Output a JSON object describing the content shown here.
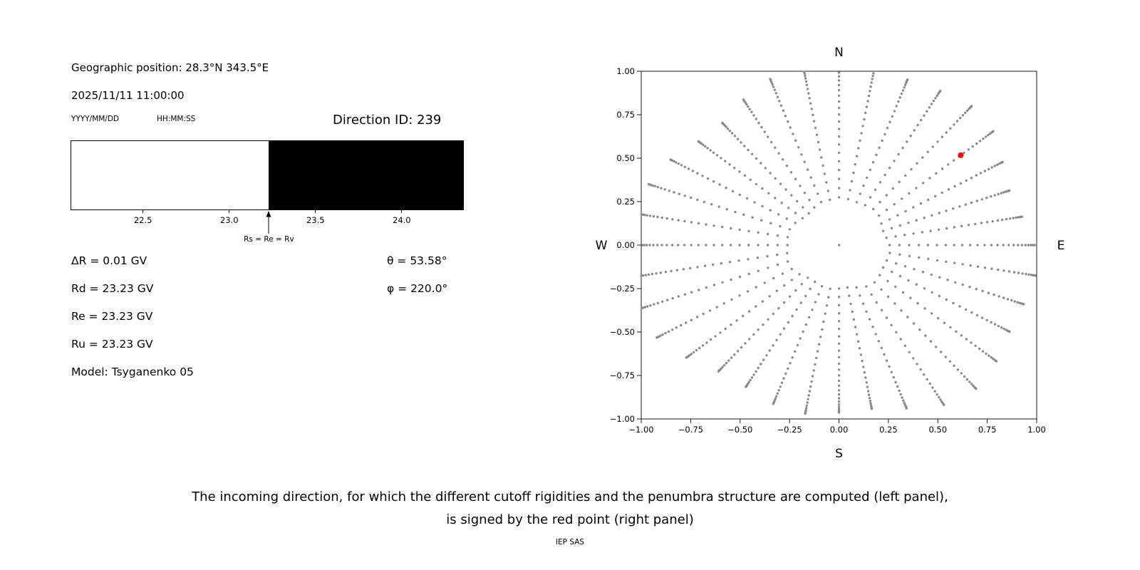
{
  "left_panel": {
    "geo_position": "Geographic position: 28.3°N 343.5°E",
    "datetime": "2025/11/11 11:00:00",
    "date_format_label": "YYYY/MM/DD",
    "time_format_label": "HH:MM:SS",
    "direction_id_label": "Direction ID: 239",
    "params_left": [
      "ΔR = 0.01 GV",
      "Rd = 23.23 GV",
      "Re = 23.23 GV",
      "Ru = 23.23 GV",
      "Model: Tsyganenko 05"
    ],
    "params_right": [
      "θ = 53.58°",
      "φ = 220.0°"
    ]
  },
  "caption": {
    "line1": "The incoming direction, for which the different cutoff rigidities and the penumbra structure are computed (left panel),",
    "line2": "is signed by the red point (right panel)",
    "credit": "IEP SAS"
  },
  "chart_data": [
    {
      "type": "bar",
      "name": "penumbra-structure",
      "x_unit": "GV",
      "x_range": [
        22.08,
        24.36
      ],
      "x_ticks": [
        22.5,
        23.0,
        23.5,
        24.0
      ],
      "x_tick_labels": [
        "22.5",
        "23.0",
        "23.5",
        "24.0"
      ],
      "regions": [
        {
          "from": 22.08,
          "to": 23.23,
          "color": "#ffffff"
        },
        {
          "from": 23.23,
          "to": 24.36,
          "color": "#000000"
        }
      ],
      "marker": {
        "x": 23.23,
        "label": "Rs = Re = Rv"
      }
    },
    {
      "type": "scatter",
      "name": "incoming-directions",
      "xlim": [
        -1,
        1
      ],
      "ylim": [
        -1,
        1
      ],
      "x_ticks": [
        -1,
        -0.75,
        -0.5,
        -0.25,
        0,
        0.25,
        0.5,
        0.75,
        1
      ],
      "x_tick_labels": [
        "−1.00",
        "−0.75",
        "−0.50",
        "−0.25",
        "0.00",
        "0.25",
        "0.50",
        "0.75",
        "1.00"
      ],
      "y_ticks": [
        -1,
        -0.75,
        -0.5,
        -0.25,
        0,
        0.25,
        0.5,
        0.75,
        1
      ],
      "y_tick_labels": [
        "−1.00",
        "−0.75",
        "−0.50",
        "−0.25",
        "0.00",
        "0.25",
        "0.50",
        "0.75",
        "1.00"
      ],
      "compass_labels": {
        "top": "N",
        "bottom": "S",
        "left": "W",
        "right": "E"
      },
      "dot_color": "#8a8a8a",
      "red_point": {
        "x": 0.616,
        "y": 0.517,
        "color": "#ff0000"
      },
      "direction_grid": {
        "azimuth_start_deg": 0,
        "azimuth_step_deg": 10,
        "azimuth_count": 36,
        "zenith_min_deg": 15,
        "zenith_max_deg": 87,
        "zenith_step_deg": 3,
        "radius_rule": "sin(zenith)",
        "center_dot": true,
        "wobble": [
          {
            "amplitude": 0.05,
            "frequency": 3,
            "phase": 0.7
          },
          {
            "amplitude": 0.035,
            "frequency": 7.3,
            "phase": 2.1
          }
        ]
      }
    }
  ]
}
